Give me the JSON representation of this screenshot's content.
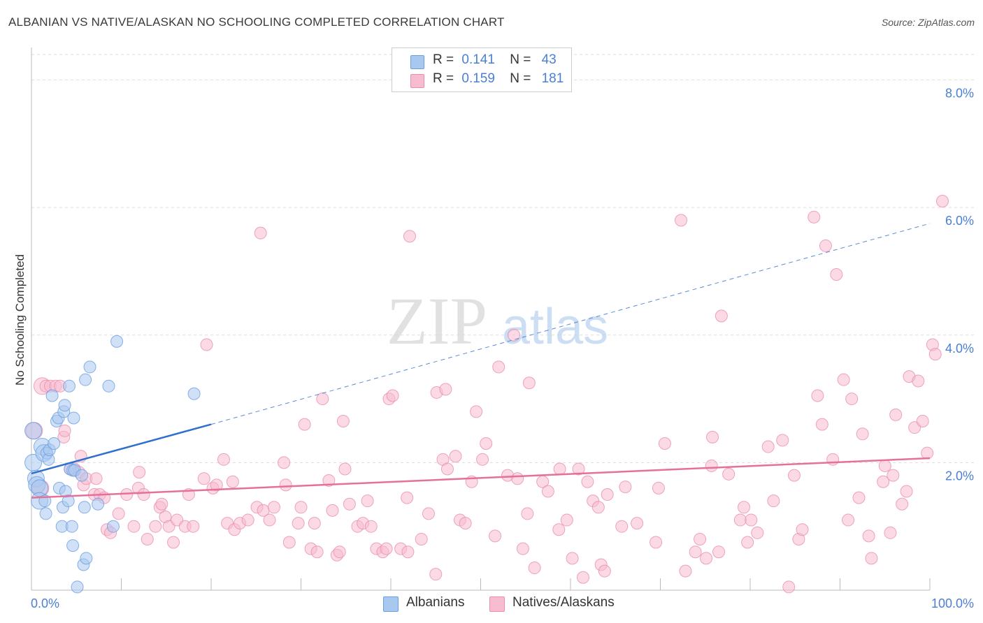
{
  "title": "ALBANIAN VS NATIVE/ALASKAN NO SCHOOLING COMPLETED CORRELATION CHART",
  "source": "Source: ZipAtlas.com",
  "watermark": {
    "zip": "ZIP",
    "atlas": "atlas"
  },
  "legend": {
    "rows": [
      {
        "r_label": "R =",
        "r_value": "0.141",
        "n_label": "N =",
        "n_value": "43"
      },
      {
        "r_label": "R =",
        "r_value": "0.159",
        "n_label": "N =",
        "n_value": "181"
      }
    ]
  },
  "bottom_legend": {
    "albanians": "Albanians",
    "natives": "Natives/Alaskans"
  },
  "colors": {
    "albanian_fill": "#a9c8f0",
    "albanian_stroke": "#6a9ee0",
    "albanian_line": "#2f6fce",
    "native_fill": "#f7bcd0",
    "native_stroke": "#e98fae",
    "native_line": "#e5709a",
    "tick_label": "#4a7fd4",
    "grid": "#dddddd"
  },
  "chart_data": {
    "type": "scatter",
    "title": "ALBANIAN VS NATIVE/ALASKAN NO SCHOOLING COMPLETED CORRELATION CHART",
    "xlabel": "",
    "ylabel": "No Schooling Completed",
    "xlim": [
      0,
      100
    ],
    "ylim": [
      0,
      8.4
    ],
    "x_tick_labels": [
      "0.0%",
      "100.0%"
    ],
    "y_ticks": [
      2,
      4,
      6,
      8
    ],
    "y_tick_labels": [
      "2.0%",
      "4.0%",
      "6.0%",
      "8.0%"
    ],
    "series": [
      {
        "name": "Albanians",
        "R": 0.141,
        "N": 43,
        "trend_solid": [
          [
            0,
            1.83
          ],
          [
            20,
            2.6
          ]
        ],
        "trend_dashed": [
          [
            20,
            2.6
          ],
          [
            100,
            5.75
          ]
        ],
        "points": [
          [
            0.2,
            2.5
          ],
          [
            0.2,
            2.0
          ],
          [
            0.5,
            1.75
          ],
          [
            0.6,
            1.65
          ],
          [
            0.9,
            1.6
          ],
          [
            0.9,
            1.4
          ],
          [
            1.2,
            2.25
          ],
          [
            1.4,
            2.15
          ],
          [
            1.5,
            1.4
          ],
          [
            1.6,
            1.2
          ],
          [
            1.7,
            2.15
          ],
          [
            1.9,
            2.05
          ],
          [
            2.0,
            2.2
          ],
          [
            2.3,
            3.05
          ],
          [
            2.5,
            2.3
          ],
          [
            2.8,
            2.65
          ],
          [
            3.0,
            2.7
          ],
          [
            3.1,
            1.6
          ],
          [
            3.4,
            1.0
          ],
          [
            3.5,
            1.3
          ],
          [
            3.6,
            2.8
          ],
          [
            3.7,
            2.9
          ],
          [
            3.8,
            1.55
          ],
          [
            4.1,
            1.4
          ],
          [
            4.2,
            3.2
          ],
          [
            4.3,
            1.9
          ],
          [
            4.5,
            1.0
          ],
          [
            4.6,
            0.7
          ],
          [
            4.6,
            1.88
          ],
          [
            4.7,
            2.7
          ],
          [
            4.8,
            1.88
          ],
          [
            5.1,
            0.05
          ],
          [
            5.6,
            1.8
          ],
          [
            5.8,
            0.4
          ],
          [
            5.9,
            1.3
          ],
          [
            6.0,
            3.3
          ],
          [
            6.1,
            0.5
          ],
          [
            6.5,
            3.5
          ],
          [
            7.4,
            1.35
          ],
          [
            8.6,
            3.2
          ],
          [
            9.1,
            1.0
          ],
          [
            9.5,
            3.9
          ],
          [
            18.1,
            3.08
          ]
        ]
      },
      {
        "name": "Natives/Alaskans",
        "R": 0.159,
        "N": 181,
        "trend_solid": [
          [
            0,
            1.45
          ],
          [
            100,
            2.07
          ]
        ],
        "points": [
          [
            0.3,
            2.5
          ],
          [
            1.0,
            1.6
          ],
          [
            1.2,
            3.2
          ],
          [
            1.6,
            3.2
          ],
          [
            2.1,
            3.2
          ],
          [
            2.7,
            3.2
          ],
          [
            3.2,
            3.2
          ],
          [
            3.6,
            2.4
          ],
          [
            3.7,
            2.5
          ],
          [
            4.3,
            1.9
          ],
          [
            4.8,
            1.9
          ],
          [
            5.3,
            1.85
          ],
          [
            5.5,
            2.1
          ],
          [
            5.8,
            1.65
          ],
          [
            6.1,
            1.75
          ],
          [
            7.0,
            1.5
          ],
          [
            7.2,
            1.75
          ],
          [
            7.6,
            1.5
          ],
          [
            8.1,
            1.45
          ],
          [
            8.4,
            0.95
          ],
          [
            8.8,
            0.9
          ],
          [
            9.7,
            1.2
          ],
          [
            10.6,
            1.5
          ],
          [
            11.4,
            1.0
          ],
          [
            11.9,
            1.6
          ],
          [
            12.0,
            1.85
          ],
          [
            12.5,
            1.5
          ],
          [
            12.9,
            0.8
          ],
          [
            13.8,
            1.0
          ],
          [
            14.3,
            1.3
          ],
          [
            14.5,
            1.35
          ],
          [
            14.9,
            1.15
          ],
          [
            15.3,
            1.0
          ],
          [
            15.8,
            0.75
          ],
          [
            16.2,
            1.1
          ],
          [
            17.1,
            1.0
          ],
          [
            17.5,
            1.5
          ],
          [
            18.0,
            1.0
          ],
          [
            19.2,
            1.75
          ],
          [
            19.5,
            3.85
          ],
          [
            20.2,
            1.6
          ],
          [
            20.6,
            1.65
          ],
          [
            21.4,
            2.05
          ],
          [
            21.8,
            1.05
          ],
          [
            22.4,
            1.7
          ],
          [
            22.6,
            0.95
          ],
          [
            23.2,
            1.05
          ],
          [
            24.1,
            1.1
          ],
          [
            25.1,
            1.3
          ],
          [
            25.5,
            5.6
          ],
          [
            25.8,
            1.25
          ],
          [
            26.5,
            1.1
          ],
          [
            27.0,
            1.3
          ],
          [
            28.1,
            2.0
          ],
          [
            28.3,
            1.65
          ],
          [
            28.7,
            0.75
          ],
          [
            29.7,
            1.05
          ],
          [
            30.0,
            1.3
          ],
          [
            30.4,
            2.6
          ],
          [
            31.1,
            0.65
          ],
          [
            31.5,
            1.05
          ],
          [
            31.8,
            0.6
          ],
          [
            32.4,
            3.0
          ],
          [
            33.1,
            1.72
          ],
          [
            33.5,
            1.25
          ],
          [
            34.0,
            0.55
          ],
          [
            34.3,
            0.6
          ],
          [
            34.7,
            2.65
          ],
          [
            34.9,
            1.9
          ],
          [
            35.4,
            1.35
          ],
          [
            36.3,
            1.0
          ],
          [
            36.9,
            1.05
          ],
          [
            37.4,
            1.4
          ],
          [
            37.8,
            1.0
          ],
          [
            38.4,
            0.65
          ],
          [
            39.1,
            0.6
          ],
          [
            39.5,
            0.65
          ],
          [
            39.8,
            3.0
          ],
          [
            40.2,
            3.05
          ],
          [
            41.1,
            0.65
          ],
          [
            41.8,
            1.45
          ],
          [
            41.9,
            0.6
          ],
          [
            42.1,
            5.55
          ],
          [
            43.4,
            0.8
          ],
          [
            44.2,
            1.2
          ],
          [
            45.0,
            0.25
          ],
          [
            45.1,
            3.1
          ],
          [
            45.8,
            2.05
          ],
          [
            46.1,
            3.15
          ],
          [
            46.3,
            1.9
          ],
          [
            47.2,
            2.1
          ],
          [
            47.7,
            1.1
          ],
          [
            48.3,
            1.05
          ],
          [
            49.0,
            1.7
          ],
          [
            49.5,
            2.8
          ],
          [
            50.2,
            2.05
          ],
          [
            50.6,
            2.3
          ],
          [
            51.6,
            0.85
          ],
          [
            52.0,
            3.5
          ],
          [
            53.0,
            1.8
          ],
          [
            53.7,
            4.0
          ],
          [
            54.1,
            1.75
          ],
          [
            54.7,
            0.65
          ],
          [
            55.2,
            1.2
          ],
          [
            55.4,
            3.25
          ],
          [
            56.0,
            0.35
          ],
          [
            56.9,
            1.7
          ],
          [
            57.5,
            1.55
          ],
          [
            58.7,
            0.95
          ],
          [
            58.8,
            1.9
          ],
          [
            59.6,
            1.1
          ],
          [
            60.2,
            0.5
          ],
          [
            60.9,
            1.9
          ],
          [
            61.4,
            0.2
          ],
          [
            61.9,
            1.7
          ],
          [
            62.5,
            1.4
          ],
          [
            63.1,
            1.3
          ],
          [
            63.4,
            0.4
          ],
          [
            63.8,
            0.3
          ],
          [
            64.1,
            1.5
          ],
          [
            65.7,
            1.0
          ],
          [
            66.1,
            1.62
          ],
          [
            67.4,
            1.05
          ],
          [
            69.5,
            0.75
          ],
          [
            69.8,
            1.6
          ],
          [
            70.5,
            2.3
          ],
          [
            72.3,
            5.8
          ],
          [
            72.8,
            0.3
          ],
          [
            73.9,
            0.6
          ],
          [
            74.4,
            0.8
          ],
          [
            75.1,
            0.5
          ],
          [
            75.7,
            1.95
          ],
          [
            75.8,
            2.4
          ],
          [
            76.5,
            0.6
          ],
          [
            76.8,
            4.3
          ],
          [
            77.6,
            1.82
          ],
          [
            78.9,
            1.1
          ],
          [
            79.3,
            1.3
          ],
          [
            79.7,
            0.75
          ],
          [
            80.1,
            1.1
          ],
          [
            80.8,
            0.9
          ],
          [
            82.0,
            2.25
          ],
          [
            82.6,
            1.4
          ],
          [
            83.6,
            2.35
          ],
          [
            84.3,
            0.05
          ],
          [
            84.9,
            1.8
          ],
          [
            85.4,
            0.8
          ],
          [
            85.8,
            0.95
          ],
          [
            87.1,
            5.85
          ],
          [
            87.5,
            3.05
          ],
          [
            88.0,
            2.6
          ],
          [
            88.4,
            5.4
          ],
          [
            89.2,
            2.05
          ],
          [
            89.6,
            4.95
          ],
          [
            90.4,
            3.3
          ],
          [
            90.9,
            1.1
          ],
          [
            91.3,
            3.0
          ],
          [
            92.1,
            1.45
          ],
          [
            92.5,
            2.45
          ],
          [
            93.2,
            0.85
          ],
          [
            93.5,
            0.5
          ],
          [
            94.8,
            1.7
          ],
          [
            95.0,
            1.95
          ],
          [
            95.6,
            0.9
          ],
          [
            95.9,
            1.8
          ],
          [
            96.2,
            2.75
          ],
          [
            96.9,
            1.35
          ],
          [
            97.4,
            1.55
          ],
          [
            97.7,
            3.35
          ],
          [
            98.3,
            2.55
          ],
          [
            98.7,
            3.28
          ],
          [
            99.2,
            2.65
          ],
          [
            99.7,
            2.15
          ],
          [
            100.3,
            3.85
          ],
          [
            100.6,
            3.7
          ],
          [
            101.4,
            6.1
          ]
        ]
      }
    ]
  }
}
